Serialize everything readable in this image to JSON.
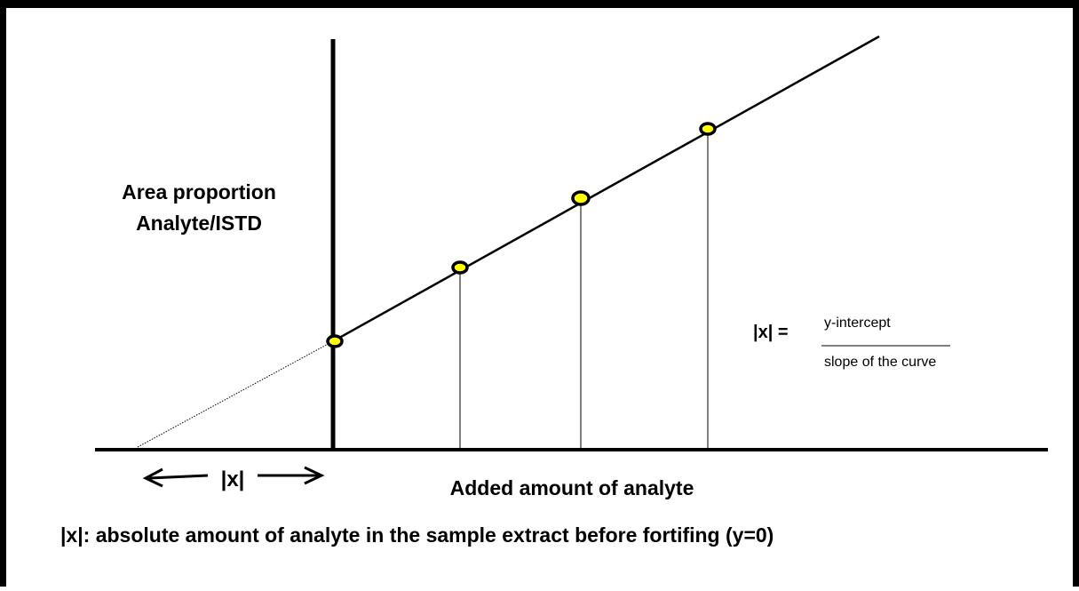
{
  "axes": {
    "y_label_line1": "Area proportion",
    "y_label_line2": "Analyte/ISTD",
    "x_label": "Added amount of analyte"
  },
  "annotations": {
    "x_arrow_label": "|x|",
    "formula_lhs": "|x| =",
    "formula_numerator": "y-intercept",
    "formula_denominator": "slope of the curve",
    "footnote": "|x|: absolute amount of analyte in the sample extract before fortifing (y=0)"
  },
  "colors": {
    "point_fill": "#ffff00",
    "point_stroke": "#000000",
    "line": "#000000"
  }
}
